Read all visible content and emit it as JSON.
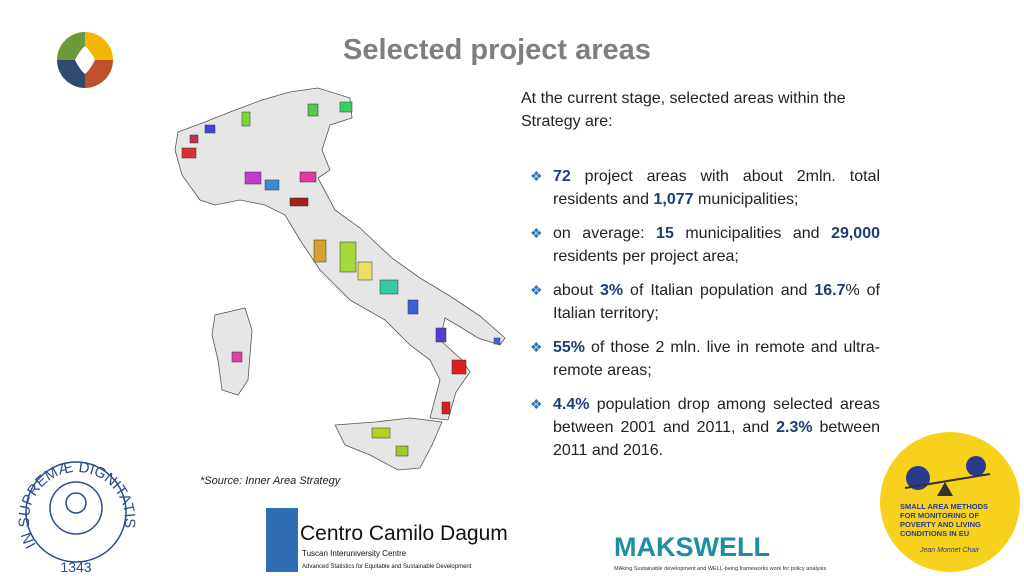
{
  "header": {
    "title": "Selected project areas"
  },
  "intro": "At the current stage, selected areas within the Strategy are:",
  "bullets": [
    [
      {
        "text": "72",
        "bold": true
      },
      " project areas with about 2mln. total residents and ",
      {
        "text": "1,077",
        "bold": true
      },
      " municipalities;"
    ],
    [
      "on average: ",
      {
        "text": "15",
        "bold": true
      },
      " municipalities and ",
      {
        "text": "29,000",
        "bold": true
      },
      " residents per project area;"
    ],
    [
      "about ",
      {
        "text": "3%",
        "bold": true
      },
      " of Italian population and ",
      {
        "text": "16.7",
        "bold": true
      },
      "% of Italian territory;"
    ],
    [
      {
        "text": "55%",
        "bold": true
      },
      " of those 2 mln. live in remote and ultra-remote areas;"
    ],
    [
      {
        "text": "4.4%",
        "bold": true
      },
      " population drop among selected areas between 2001 and 2011, and ",
      {
        "text": "2.3%",
        "bold": true
      },
      " between 2011 and 2016."
    ]
  ],
  "source": "*Source: Inner Area Strategy",
  "logos": {
    "seal": {
      "motto": "IN SUPREMÆ DIGNITATIS",
      "year": "1343"
    },
    "dagum": {
      "name": "Centro Camilo Dagum",
      "line1": "Tuscan Interuniversity Centre",
      "line2": "Advanced Statistics for Equitable and Sustainable Development"
    },
    "makswell": {
      "name": "MAKSWELL",
      "tagline": "MAking Sustainable development and WELL-being frameworks work for policy analysis"
    },
    "chair": {
      "title": "SMALL AREA METHODS FOR MONITORING OF POVERTY AND LIVING CONDITIONS IN EU",
      "subtitle": "Jean Monnet Chair"
    }
  }
}
